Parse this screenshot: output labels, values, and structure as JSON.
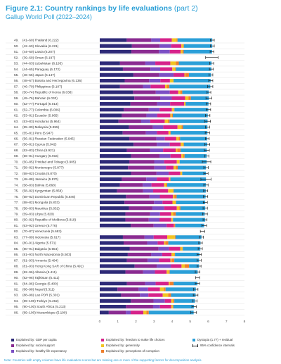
{
  "figure": {
    "title": "Figure 2.1: Country rankings by life evaluations",
    "title_part": "(part 2)",
    "subtitle": "Gallup World Poll (2022–2024)",
    "note": "Note: Countries with empty columns have life evaluation scores but are missing one or more of the supporting factors for decomposition analysis."
  },
  "colors": {
    "gdp": "#2e2a78",
    "social": "#8a2b91",
    "health": "#7b4fc4",
    "freedom": "#d6228a",
    "generosity": "#f2c322",
    "corruption": "#ee7f2d",
    "dystopia": "#2b9fd8",
    "ci": "#222222",
    "rowline": "#dcdcdc",
    "accent": "#2a9fd6"
  },
  "legend": [
    {
      "key": "gdp",
      "label": "Explained by: GDP per capita"
    },
    {
      "key": "social",
      "label": "Explained by: social support"
    },
    {
      "key": "health",
      "label": "Explained by: healthy life expectancy"
    },
    {
      "key": "freedom",
      "label": "Explained by: freedom to make life choices"
    },
    {
      "key": "generosity",
      "label": "Explained by: generosity"
    },
    {
      "key": "corruption",
      "label": "Explained by: perceptions of corruption"
    },
    {
      "key": "dystopia",
      "label": "Dystopia (1.77) + residual"
    },
    {
      "key": "ci",
      "label": "95% confidence intervals"
    }
  ],
  "chart_data": {
    "type": "bar",
    "orientation": "horizontal",
    "stacked": true,
    "xlim": [
      0,
      8
    ],
    "x_ticks": [
      0,
      1,
      2,
      3,
      4,
      5,
      6,
      7,
      8
    ],
    "segment_order": [
      "gdp",
      "social",
      "health",
      "freedom",
      "generosity",
      "corruption",
      "dystopia"
    ],
    "rows": [
      {
        "rank": "49.",
        "range": "(41–60)",
        "country": "Thailand",
        "score": 6.222,
        "segments": [
          1.49,
          1.36,
          0.49,
          0.64,
          0.27,
          0.05,
          1.92
        ],
        "ci": [
          6.11,
          6.33
        ]
      },
      {
        "rank": "50.",
        "range": "(42–60)",
        "country": "Slovakia",
        "score": 6.221,
        "segments": [
          1.78,
          1.53,
          0.64,
          0.56,
          0.1,
          0.04,
          1.57
        ],
        "ci": [
          6.11,
          6.33
        ]
      },
      {
        "rank": "51.",
        "range": "(44–60)",
        "country": "Latvia",
        "score": 6.207,
        "segments": [
          1.75,
          1.52,
          0.6,
          0.6,
          0.1,
          0.07,
          1.57
        ],
        "ci": [
          6.1,
          6.31
        ]
      },
      {
        "rank": "52.",
        "range": "(39–69)",
        "country": "Oman",
        "score": 6.197,
        "segments": null,
        "ci": [
          5.85,
          6.54
        ]
      },
      {
        "rank": "53.",
        "range": "(44–63)",
        "country": "Uzbekistan",
        "score": 6.193,
        "segments": [
          1.12,
          1.4,
          0.55,
          0.83,
          0.31,
          0.16,
          1.81
        ],
        "ci": [
          6.08,
          6.3
        ]
      },
      {
        "rank": "54.",
        "range": "(44–65)",
        "country": "Paraguay",
        "score": 6.172,
        "segments": [
          1.28,
          1.52,
          0.54,
          0.67,
          0.15,
          0.05,
          1.96
        ],
        "ci": [
          6.06,
          6.28
        ]
      },
      {
        "rank": "55.",
        "range": "(46–65)",
        "country": "Japan",
        "score": 6.147,
        "segments": [
          1.86,
          1.43,
          0.79,
          0.6,
          0.05,
          0.2,
          1.22
        ],
        "ci": [
          6.04,
          6.25
        ]
      },
      {
        "rank": "56.",
        "range": "(48–67)",
        "country": "Bosnia and Herzegovina",
        "score": 6.136,
        "segments": [
          1.38,
          1.35,
          0.62,
          0.53,
          0.2,
          0.0,
          2.05
        ],
        "ci": [
          6.02,
          6.25
        ]
      },
      {
        "rank": "57.",
        "range": "(46–70)",
        "country": "Philippines",
        "score": 6.107,
        "segments": [
          1.12,
          1.27,
          0.42,
          0.8,
          0.1,
          0.14,
          2.26
        ],
        "ci": [
          5.96,
          6.25
        ]
      },
      {
        "rank": "58.",
        "range": "(50–74)",
        "country": "Republic of Korea",
        "score": 6.038,
        "segments": [
          1.84,
          1.26,
          0.77,
          0.47,
          0.11,
          0.11,
          1.47
        ],
        "ci": [
          5.93,
          6.14
        ]
      },
      {
        "rank": "59.",
        "range": "(49–76)",
        "country": "Bahrain",
        "score": 6.03,
        "segments": [
          1.91,
          1.43,
          0.64,
          0.74,
          0.18,
          0.14,
          0.99
        ],
        "ci": [
          5.87,
          6.19
        ]
      },
      {
        "rank": "60.",
        "range": "(52–77)",
        "country": "Portugal",
        "score": 6.013,
        "segments": [
          1.7,
          1.47,
          0.72,
          0.77,
          0.06,
          0.03,
          1.26
        ],
        "ci": [
          5.89,
          6.13
        ]
      },
      {
        "rank": "61.",
        "range": "(52–77)",
        "country": "Colombia",
        "score": 6.006,
        "segments": [
          1.33,
          1.38,
          0.6,
          0.68,
          0.1,
          0.04,
          1.87
        ],
        "ci": [
          5.88,
          6.13
        ]
      },
      {
        "rank": "62.",
        "range": "(53–81)",
        "country": "Ecuador",
        "score": 5.965,
        "segments": [
          1.22,
          1.36,
          0.6,
          0.72,
          0.09,
          0.05,
          1.93
        ],
        "ci": [
          5.84,
          6.09
        ]
      },
      {
        "rank": "63.",
        "range": "(53–83)",
        "country": "Honduras",
        "score": 5.964,
        "segments": [
          1.04,
          1.25,
          0.5,
          0.8,
          0.18,
          0.09,
          2.1
        ],
        "ci": [
          5.81,
          6.12
        ]
      },
      {
        "rank": "64.",
        "range": "(55–80)",
        "country": "Malaysia",
        "score": 5.955,
        "segments": [
          1.62,
          1.32,
          0.57,
          0.79,
          0.22,
          0.08,
          1.35
        ],
        "ci": [
          5.84,
          6.07
        ]
      },
      {
        "rank": "65.",
        "range": "(55–81)",
        "country": "Peru",
        "score": 5.947,
        "segments": [
          1.27,
          1.28,
          0.61,
          0.64,
          0.09,
          0.03,
          2.03
        ],
        "ci": [
          5.83,
          6.07
        ]
      },
      {
        "rank": "66.",
        "range": "(56–81)",
        "country": "Russian Federation",
        "score": 5.945,
        "segments": [
          1.63,
          1.5,
          0.47,
          0.63,
          0.13,
          0.08,
          1.5
        ],
        "ci": [
          5.84,
          6.05
        ]
      },
      {
        "rank": "67.",
        "range": "(56–81)",
        "country": "Cyprus",
        "score": 5.942,
        "segments": [
          1.87,
          1.28,
          0.72,
          0.6,
          0.15,
          0.03,
          1.29
        ],
        "ci": [
          5.8,
          6.08
        ]
      },
      {
        "rank": "68.",
        "range": "(52–83)",
        "country": "China",
        "score": 5.921,
        "segments": [
          1.5,
          1.28,
          0.72,
          0.71,
          0.07,
          0.19,
          1.45
        ],
        "ci": [
          5.78,
          6.06
        ]
      },
      {
        "rank": "69.",
        "range": "(56–81)",
        "country": "Hungary",
        "score": 5.916,
        "segments": [
          1.74,
          1.56,
          0.61,
          0.6,
          0.11,
          0.07,
          1.22
        ],
        "ci": [
          5.8,
          6.03
        ]
      },
      {
        "rank": "70.",
        "range": "(50–85)",
        "country": "Trinidad and Tobago",
        "score": 5.905,
        "segments": [
          1.63,
          1.38,
          0.55,
          0.7,
          0.14,
          0.02,
          1.49
        ],
        "ci": [
          5.67,
          6.14
        ]
      },
      {
        "rank": "71.",
        "range": "(58–82)",
        "country": "Montenegro",
        "score": 5.877,
        "segments": [
          1.56,
          1.46,
          0.64,
          0.42,
          0.13,
          0.1,
          1.56
        ],
        "ci": [
          5.75,
          6.0
        ]
      },
      {
        "rank": "72.",
        "range": "(58–82)",
        "country": "Croatia",
        "score": 5.87,
        "segments": [
          1.73,
          1.41,
          0.67,
          0.64,
          0.1,
          0.01,
          1.31
        ],
        "ci": [
          5.75,
          5.99
        ]
      },
      {
        "rank": "73.",
        "range": "(48–88)",
        "country": "Jamaica",
        "score": 5.87,
        "segments": [
          1.22,
          1.35,
          0.58,
          0.67,
          0.05,
          0.04,
          1.96
        ],
        "ci": [
          5.59,
          6.15
        ]
      },
      {
        "rank": "74.",
        "range": "(58–83)",
        "country": "Bolivia",
        "score": 5.868,
        "segments": [
          1.11,
          1.27,
          0.48,
          0.7,
          0.11,
          0.06,
          2.14
        ],
        "ci": [
          5.75,
          5.99
        ]
      },
      {
        "rank": "75.",
        "range": "(58–82)",
        "country": "Kyrgyzstan",
        "score": 5.858,
        "segments": [
          0.96,
          1.44,
          0.55,
          0.83,
          0.27,
          0.04,
          1.77
        ],
        "ci": [
          5.74,
          5.97
        ]
      },
      {
        "rank": "76.",
        "range": "(58–82)",
        "country": "Dominican Republic",
        "score": 5.846,
        "segments": [
          1.45,
          1.3,
          0.57,
          0.73,
          0.07,
          0.13,
          1.6
        ],
        "ci": [
          5.73,
          5.97
        ]
      },
      {
        "rank": "77.",
        "range": "(58–82)",
        "country": "Mongolia",
        "score": 5.833,
        "segments": [
          1.37,
          1.63,
          0.47,
          0.55,
          0.17,
          0.03,
          1.61
        ],
        "ci": [
          5.72,
          5.95
        ]
      },
      {
        "rank": "78.",
        "range": "(58–83)",
        "country": "Mauritius",
        "score": 5.832,
        "segments": [
          1.61,
          1.3,
          0.65,
          0.7,
          0.14,
          0.06,
          1.37
        ],
        "ci": [
          5.71,
          5.95
        ]
      },
      {
        "rank": "79.",
        "range": "(59–83)",
        "country": "Libya",
        "score": 5.82,
        "segments": [
          1.42,
          1.36,
          0.55,
          0.61,
          0.12,
          0.14,
          1.6
        ],
        "ci": [
          5.69,
          5.95
        ]
      },
      {
        "rank": "80.",
        "range": "(60–82)",
        "country": "Republic of Moldova",
        "score": 5.819,
        "segments": [
          1.42,
          1.29,
          0.59,
          0.65,
          0.08,
          0.02,
          1.78
        ],
        "ci": [
          5.71,
          5.93
        ]
      },
      {
        "rank": "81.",
        "range": "(63–92)",
        "country": "Greece",
        "score": 5.776,
        "segments": [
          1.72,
          1.26,
          0.72,
          0.4,
          0.02,
          0.05,
          1.6
        ],
        "ci": [
          5.64,
          5.91
        ]
      },
      {
        "rank": "82.",
        "range": "(70–87)",
        "country": "Venezuela",
        "score": 5.683,
        "segments": null,
        "ci": [
          5.56,
          5.8
        ]
      },
      {
        "rank": "83.",
        "range": "(77–89)",
        "country": "Indonesia",
        "score": 5.617,
        "segments": [
          1.28,
          1.2,
          0.5,
          0.75,
          0.42,
          0.04,
          1.43
        ],
        "ci": [
          5.51,
          5.73
        ]
      },
      {
        "rank": "84.",
        "range": "(80–91)",
        "country": "Algeria",
        "score": 5.571,
        "segments": [
          1.32,
          1.3,
          0.58,
          0.36,
          0.07,
          0.16,
          1.78
        ],
        "ci": [
          5.47,
          5.67
        ]
      },
      {
        "rank": "85.",
        "range": "(80–91)",
        "country": "Bulgaria",
        "score": 5.554,
        "segments": [
          1.65,
          1.6,
          0.58,
          0.62,
          0.12,
          0.02,
          0.97
        ],
        "ci": [
          5.44,
          5.67
        ]
      },
      {
        "rank": "86.",
        "range": "(81–93)",
        "country": "North Macedonia",
        "score": 5.503,
        "segments": [
          1.55,
          1.3,
          0.6,
          0.52,
          0.16,
          0.03,
          1.35
        ],
        "ci": [
          5.38,
          5.62
        ]
      },
      {
        "rank": "87.",
        "range": "(81–93)",
        "country": "Armenia",
        "score": 5.494,
        "segments": [
          1.5,
          1.15,
          0.62,
          0.64,
          0.06,
          0.15,
          1.37
        ],
        "ci": [
          5.38,
          5.61
        ]
      },
      {
        "rank": "88.",
        "range": "(81–93)",
        "country": "Hong Kong SAR of China",
        "score": 5.491,
        "segments": [
          1.93,
          1.22,
          0.79,
          0.58,
          0.18,
          0.24,
          0.55
        ],
        "ci": [
          5.38,
          5.6
        ]
      },
      {
        "rank": "89.",
        "range": "(82–96)",
        "country": "Albania",
        "score": 5.411,
        "segments": [
          1.42,
          0.98,
          0.65,
          0.65,
          0.12,
          0.05,
          1.54
        ],
        "ci": [
          5.28,
          5.54
        ]
      },
      {
        "rank": "90.",
        "range": "(82–96)",
        "country": "Tajikistan",
        "score": 5.411,
        "segments": null,
        "ci": [
          5.3,
          5.52
        ]
      },
      {
        "rank": "91.",
        "range": "(84–96)",
        "country": "Georgia",
        "score": 5.4,
        "segments": [
          1.5,
          1.01,
          0.58,
          0.72,
          0.06,
          0.21,
          1.32
        ],
        "ci": [
          5.28,
          5.52
        ]
      },
      {
        "rank": "92.",
        "range": "(86–98)",
        "country": "Nepal",
        "score": 5.311,
        "segments": [
          0.98,
          1.17,
          0.52,
          0.66,
          0.22,
          0.09,
          1.67
        ],
        "ci": [
          5.19,
          5.43
        ]
      },
      {
        "rank": "93.",
        "range": "(88–98)",
        "country": "Lao PDR",
        "score": 5.301,
        "segments": [
          1.18,
          1.04,
          0.47,
          0.79,
          0.3,
          0.16,
          1.36
        ],
        "ci": [
          5.17,
          5.43
        ]
      },
      {
        "rank": "94.",
        "range": "(89–100)",
        "country": "Türkiye",
        "score": 5.262,
        "segments": [
          1.72,
          1.25,
          0.63,
          0.35,
          0.1,
          0.07,
          1.14
        ],
        "ci": [
          5.15,
          5.38
        ]
      },
      {
        "rank": "95.",
        "range": "(90–100)",
        "country": "South Africa",
        "score": 5.213,
        "segments": [
          1.45,
          1.5,
          0.38,
          0.62,
          0.08,
          0.04,
          1.14
        ],
        "ci": [
          5.09,
          5.34
        ]
      },
      {
        "rank": "96.",
        "range": "(89–100)",
        "country": "Mozambique",
        "score": 5.19,
        "segments": [
          0.5,
          0.95,
          0.26,
          0.7,
          0.17,
          0.13,
          2.48
        ],
        "ci": [
          5.03,
          5.35
        ]
      }
    ]
  }
}
